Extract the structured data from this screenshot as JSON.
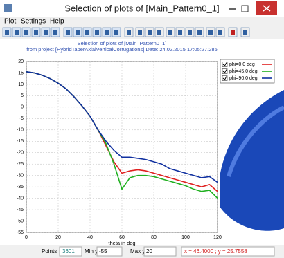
{
  "window": {
    "title": "Selection of plots of [Main_Pattern0_1]",
    "menu": [
      "Plot",
      "Settings",
      "Help"
    ]
  },
  "chart_data": {
    "type": "line",
    "title": "Selection of plots of [Main_Pattern0_1]",
    "subtitle": "from project [HybridTaperAxialVerticalCorrugations]   Date: 24.02.2015 17:05:27.285",
    "x_label": "theta in deg",
    "x": [
      0,
      5,
      10,
      15,
      20,
      25,
      30,
      35,
      40,
      45,
      50,
      55,
      60,
      65,
      70,
      75,
      80,
      85,
      90,
      95,
      100,
      105,
      110,
      115,
      120
    ],
    "series": [
      {
        "name": "phi=0.0 deg",
        "color": "#e02020",
        "values": [
          15.5,
          15,
          14,
          12.5,
          10.5,
          8,
          4.5,
          0.5,
          -4,
          -10,
          -17,
          -24,
          -29,
          -28,
          -27.5,
          -28,
          -29,
          -30,
          -31,
          -32,
          -33,
          -34,
          -35,
          -34,
          -37
        ]
      },
      {
        "name": "phi=45.0 deg",
        "color": "#20b020",
        "values": [
          15.5,
          15,
          14,
          12.5,
          10.5,
          8,
          4.5,
          0.5,
          -4,
          -10,
          -16,
          -25,
          -36,
          -31,
          -30,
          -30,
          -30.5,
          -31.5,
          -32.5,
          -33.5,
          -34.5,
          -36,
          -37,
          -36.5,
          -40
        ]
      },
      {
        "name": "phi=90.0 deg",
        "color": "#1030a0",
        "values": [
          15.5,
          15,
          14,
          12.5,
          10.5,
          8,
          4.5,
          0.5,
          -4,
          -10,
          -15,
          -19,
          -22,
          -22,
          -22.5,
          -23,
          -24,
          -25,
          -27,
          -28,
          -29,
          -30,
          -31,
          -30.5,
          -33
        ]
      }
    ],
    "xlim": [
      0,
      120
    ],
    "ylim": [
      -55,
      20
    ],
    "xticks": [
      0,
      20,
      40,
      60,
      80,
      100,
      120
    ],
    "yticks": [
      20,
      15,
      10,
      5,
      0,
      -5,
      -10,
      -15,
      -20,
      -25,
      -30,
      -35,
      -40,
      -45,
      -50,
      -55
    ],
    "grid": true
  },
  "status": {
    "points_label": "Points",
    "points": 3601,
    "min_label": "Min y:",
    "min": -55,
    "max_label": "Max y:",
    "max": 20,
    "cursor": "x = 46.4000 ; y = 25.7558"
  }
}
